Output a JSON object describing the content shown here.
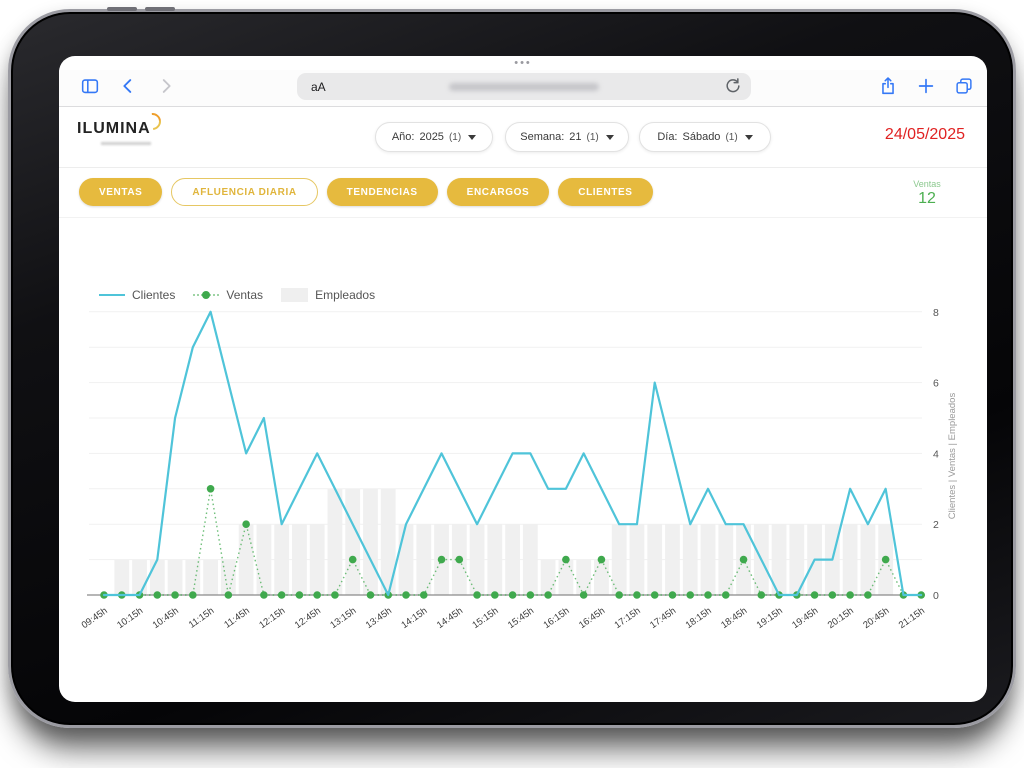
{
  "browser": {
    "page_dots": "•••",
    "text_size_label": "aA"
  },
  "header": {
    "logo_text": "ILUMINA",
    "date": "24/05/2025",
    "filters": [
      {
        "label": "Año:",
        "value": "2025",
        "count": "(1)"
      },
      {
        "label": "Semana:",
        "value": "21",
        "count": "(1)"
      },
      {
        "label": "Día:",
        "value": "Sábado",
        "count": "(1)"
      }
    ]
  },
  "nav_tabs": [
    {
      "label": "VENTAS",
      "variant": "filled"
    },
    {
      "label": "AFLUENCIA DIARIA",
      "variant": "outline"
    },
    {
      "label": "TENDENCIAS",
      "variant": "filled"
    },
    {
      "label": "ENCARGOS",
      "variant": "filled"
    },
    {
      "label": "CLIENTES",
      "variant": "filled"
    }
  ],
  "kpi": {
    "label": "Ventas",
    "value": "12"
  },
  "chart_data": {
    "type": "mixed: line + dotted-point line + bars",
    "x_times": [
      "09:45",
      "10:00",
      "10:15",
      "10:30",
      "10:45",
      "11:00",
      "11:15",
      "11:30",
      "11:45",
      "12:00",
      "12:15",
      "12:30",
      "12:45",
      "13:00",
      "13:15",
      "13:30",
      "13:45",
      "14:00",
      "14:15",
      "14:30",
      "14:45",
      "15:00",
      "15:15",
      "15:30",
      "15:45",
      "16:00",
      "16:15",
      "16:30",
      "16:45",
      "17:00",
      "17:15",
      "17:30",
      "17:45",
      "18:00",
      "18:15",
      "18:30",
      "18:45",
      "19:00",
      "19:15",
      "19:30",
      "19:45",
      "20:00",
      "20:15",
      "20:30",
      "20:45",
      "21:00",
      "21:15"
    ],
    "x_labels_shown": [
      "09:45h",
      "10:15h",
      "10:45h",
      "11:15h",
      "11:45h",
      "12:15h",
      "12:45h",
      "13:15h",
      "13:45h",
      "14:15h",
      "14:45h",
      "15:15h",
      "15:45h",
      "16:15h",
      "16:45h",
      "17:15h",
      "17:45h",
      "18:15h",
      "18:45h",
      "19:15h",
      "19:45h",
      "20:15h",
      "20:45h",
      "21:15h"
    ],
    "series": [
      {
        "name": "Clientes",
        "type": "line",
        "color": "#4fc4d9",
        "values": [
          0,
          0,
          0,
          1,
          5,
          7,
          8,
          6,
          4,
          5,
          2,
          3,
          4,
          3,
          2,
          1,
          0,
          2,
          3,
          4,
          3,
          2,
          3,
          4,
          4,
          3,
          3,
          4,
          3,
          2,
          2,
          6,
          4,
          2,
          3,
          2,
          2,
          1,
          0,
          0,
          1,
          1,
          3,
          2,
          3,
          0,
          0
        ]
      },
      {
        "name": "Ventas",
        "type": "dotted-line-points",
        "color": "#3fa94d",
        "values": [
          0,
          0,
          0,
          0,
          0,
          0,
          3,
          0,
          2,
          0,
          0,
          0,
          0,
          0,
          1,
          0,
          0,
          0,
          0,
          1,
          1,
          0,
          0,
          0,
          0,
          0,
          1,
          0,
          1,
          0,
          0,
          0,
          0,
          0,
          0,
          0,
          1,
          0,
          0,
          0,
          0,
          0,
          0,
          0,
          1,
          0,
          0
        ]
      },
      {
        "name": "Empleados",
        "type": "bar",
        "color": "#f0f0f0",
        "values": [
          0,
          1,
          1,
          1,
          1,
          1,
          1,
          1,
          2,
          2,
          2,
          2,
          2,
          3,
          3,
          3,
          3,
          2,
          2,
          2,
          2,
          2,
          2,
          2,
          2,
          1,
          1,
          1,
          1,
          2,
          2,
          2,
          2,
          2,
          2,
          2,
          2,
          2,
          2,
          2,
          2,
          2,
          2,
          2,
          2,
          0,
          0
        ]
      }
    ],
    "ylim": [
      0,
      8
    ],
    "y_ticks": [
      0,
      2,
      4,
      6,
      8
    ],
    "ylabel": "Clientes | Ventas | Empleados",
    "legend_position": "top-left",
    "grid": "horizontal lines at each integer 1-8"
  }
}
